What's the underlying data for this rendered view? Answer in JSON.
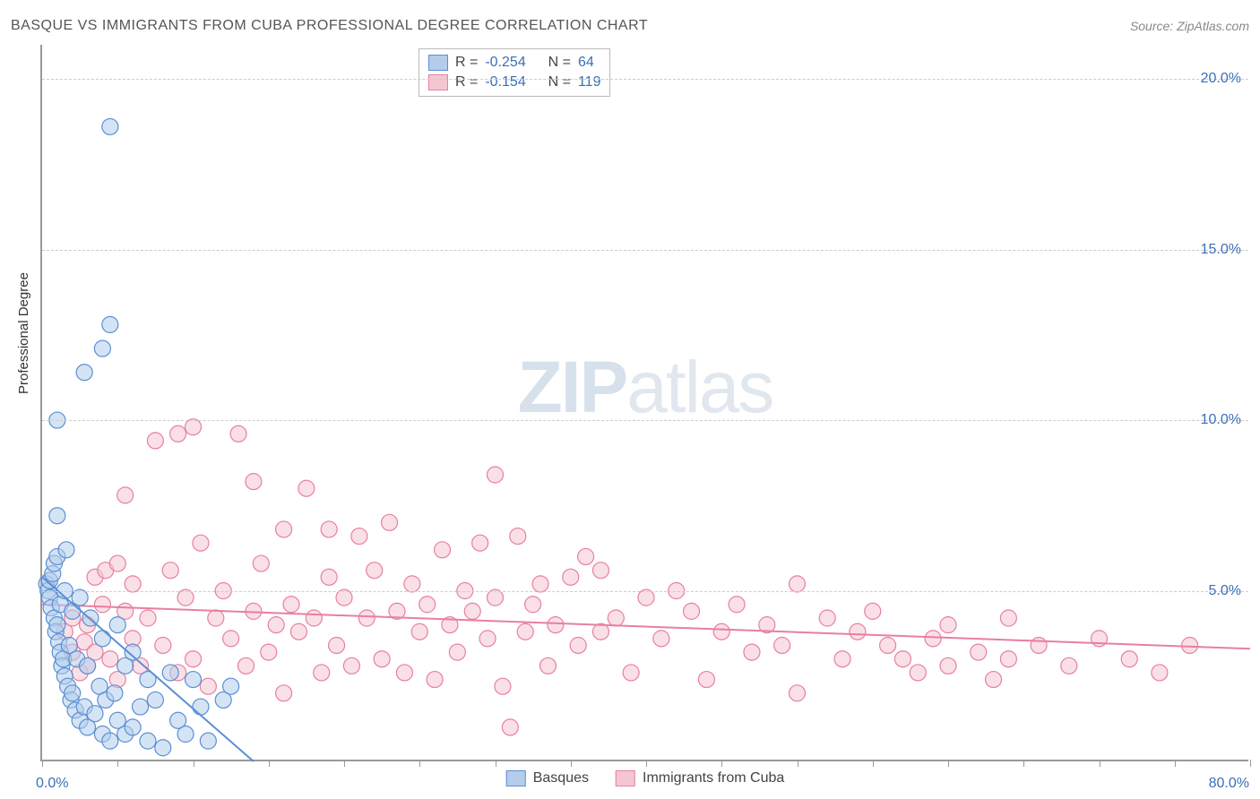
{
  "title": "BASQUE VS IMMIGRANTS FROM CUBA PROFESSIONAL DEGREE CORRELATION CHART",
  "source": "Source: ZipAtlas.com",
  "watermark": {
    "bold": "ZIP",
    "rest": "atlas"
  },
  "chart": {
    "type": "scatter",
    "background_color": "#ffffff",
    "grid_color": "#cccccc",
    "axis_color": "#999999",
    "yaxis_label": "Professional Degree",
    "ylim": [
      0,
      21
    ],
    "yticks": [
      5,
      10,
      15,
      20
    ],
    "ytick_labels": [
      "5.0%",
      "10.0%",
      "15.0%",
      "20.0%"
    ],
    "xlim": [
      0,
      80
    ],
    "xticks": [
      0,
      5,
      10,
      15,
      20,
      25,
      30,
      35,
      40,
      45,
      50,
      55,
      60,
      65,
      70,
      75,
      80
    ],
    "xaxis_min_label": "0.0%",
    "xaxis_max_label": "80.0%",
    "label_fontsize": 15,
    "tick_fontsize": 16,
    "tick_color": "#3b6fb6",
    "marker_radius": 9,
    "marker_opacity": 0.55,
    "line_width": 2
  },
  "series": {
    "basques": {
      "label": "Basques",
      "color_fill": "#b3cdeb",
      "color_stroke": "#5a8fd4",
      "R": "-0.254",
      "N": "64",
      "regression": {
        "x1": 0,
        "y1": 5.4,
        "x2": 14,
        "y2": 0
      },
      "points": [
        [
          0.3,
          5.2
        ],
        [
          0.4,
          5.0
        ],
        [
          0.5,
          4.8
        ],
        [
          0.5,
          5.3
        ],
        [
          0.6,
          4.5
        ],
        [
          0.7,
          5.5
        ],
        [
          0.8,
          4.2
        ],
        [
          0.8,
          5.8
        ],
        [
          0.9,
          3.8
        ],
        [
          1.0,
          4.0
        ],
        [
          1.0,
          6.0
        ],
        [
          1.1,
          3.5
        ],
        [
          1.2,
          3.2
        ],
        [
          1.2,
          4.6
        ],
        [
          1.3,
          2.8
        ],
        [
          1.4,
          3.0
        ],
        [
          1.5,
          2.5
        ],
        [
          1.5,
          5.0
        ],
        [
          1.6,
          6.2
        ],
        [
          1.7,
          2.2
        ],
        [
          1.8,
          3.4
        ],
        [
          1.9,
          1.8
        ],
        [
          2.0,
          2.0
        ],
        [
          2.0,
          4.4
        ],
        [
          2.2,
          1.5
        ],
        [
          2.3,
          3.0
        ],
        [
          2.5,
          1.2
        ],
        [
          2.5,
          4.8
        ],
        [
          2.8,
          1.6
        ],
        [
          3.0,
          2.8
        ],
        [
          3.0,
          1.0
        ],
        [
          3.2,
          4.2
        ],
        [
          3.5,
          1.4
        ],
        [
          3.8,
          2.2
        ],
        [
          4.0,
          3.6
        ],
        [
          4.0,
          0.8
        ],
        [
          4.2,
          1.8
        ],
        [
          4.5,
          0.6
        ],
        [
          4.8,
          2.0
        ],
        [
          5.0,
          1.2
        ],
        [
          5.0,
          4.0
        ],
        [
          5.5,
          0.8
        ],
        [
          5.5,
          2.8
        ],
        [
          6.0,
          1.0
        ],
        [
          6.0,
          3.2
        ],
        [
          6.5,
          1.6
        ],
        [
          7.0,
          0.6
        ],
        [
          7.0,
          2.4
        ],
        [
          7.5,
          1.8
        ],
        [
          8.0,
          0.4
        ],
        [
          8.5,
          2.6
        ],
        [
          9.0,
          1.2
        ],
        [
          9.5,
          0.8
        ],
        [
          10.0,
          2.4
        ],
        [
          10.5,
          1.6
        ],
        [
          11.0,
          0.6
        ],
        [
          12.0,
          1.8
        ],
        [
          12.5,
          2.2
        ],
        [
          1.0,
          7.2
        ],
        [
          1.0,
          10.0
        ],
        [
          2.8,
          11.4
        ],
        [
          4.0,
          12.1
        ],
        [
          4.5,
          12.8
        ],
        [
          4.5,
          18.6
        ]
      ]
    },
    "cuba": {
      "label": "Immigrants from Cuba",
      "color_fill": "#f4c6d2",
      "color_stroke": "#e87fa0",
      "R": "-0.154",
      "N": "119",
      "regression": {
        "x1": 0,
        "y1": 4.6,
        "x2": 80,
        "y2": 3.3
      },
      "points": [
        [
          1.5,
          3.8
        ],
        [
          2.0,
          4.2
        ],
        [
          2.0,
          3.2
        ],
        [
          2.5,
          2.6
        ],
        [
          2.8,
          3.5
        ],
        [
          3.0,
          4.0
        ],
        [
          3.0,
          2.8
        ],
        [
          3.5,
          5.4
        ],
        [
          3.5,
          3.2
        ],
        [
          4.0,
          4.6
        ],
        [
          4.2,
          5.6
        ],
        [
          4.5,
          3.0
        ],
        [
          5.0,
          2.4
        ],
        [
          5.0,
          5.8
        ],
        [
          5.5,
          7.8
        ],
        [
          5.5,
          4.4
        ],
        [
          6.0,
          3.6
        ],
        [
          6.0,
          5.2
        ],
        [
          6.5,
          2.8
        ],
        [
          7.0,
          4.2
        ],
        [
          7.5,
          9.4
        ],
        [
          8.0,
          3.4
        ],
        [
          8.5,
          5.6
        ],
        [
          9.0,
          2.6
        ],
        [
          9.0,
          9.6
        ],
        [
          9.5,
          4.8
        ],
        [
          10.0,
          3.0
        ],
        [
          10.0,
          9.8
        ],
        [
          10.5,
          6.4
        ],
        [
          11.0,
          2.2
        ],
        [
          11.5,
          4.2
        ],
        [
          12.0,
          5.0
        ],
        [
          12.5,
          3.6
        ],
        [
          13.0,
          9.6
        ],
        [
          13.5,
          2.8
        ],
        [
          14.0,
          4.4
        ],
        [
          14.0,
          8.2
        ],
        [
          14.5,
          5.8
        ],
        [
          15.0,
          3.2
        ],
        [
          15.5,
          4.0
        ],
        [
          16.0,
          6.8
        ],
        [
          16.0,
          2.0
        ],
        [
          16.5,
          4.6
        ],
        [
          17.0,
          3.8
        ],
        [
          17.5,
          8.0
        ],
        [
          18.0,
          4.2
        ],
        [
          18.5,
          2.6
        ],
        [
          19.0,
          5.4
        ],
        [
          19.0,
          6.8
        ],
        [
          19.5,
          3.4
        ],
        [
          20.0,
          4.8
        ],
        [
          20.5,
          2.8
        ],
        [
          21.0,
          6.6
        ],
        [
          21.5,
          4.2
        ],
        [
          22.0,
          5.6
        ],
        [
          22.5,
          3.0
        ],
        [
          23.0,
          7.0
        ],
        [
          23.5,
          4.4
        ],
        [
          24.0,
          2.6
        ],
        [
          24.5,
          5.2
        ],
        [
          25.0,
          3.8
        ],
        [
          25.5,
          4.6
        ],
        [
          26.0,
          2.4
        ],
        [
          26.5,
          6.2
        ],
        [
          27.0,
          4.0
        ],
        [
          27.5,
          3.2
        ],
        [
          28.0,
          5.0
        ],
        [
          28.5,
          4.4
        ],
        [
          29.0,
          6.4
        ],
        [
          29.5,
          3.6
        ],
        [
          30.0,
          4.8
        ],
        [
          30.0,
          8.4
        ],
        [
          30.5,
          2.2
        ],
        [
          31.0,
          1.0
        ],
        [
          31.5,
          6.6
        ],
        [
          32.0,
          3.8
        ],
        [
          32.5,
          4.6
        ],
        [
          33.0,
          5.2
        ],
        [
          33.5,
          2.8
        ],
        [
          34.0,
          4.0
        ],
        [
          35.0,
          5.4
        ],
        [
          35.5,
          3.4
        ],
        [
          36.0,
          6.0
        ],
        [
          37.0,
          3.8
        ],
        [
          37.0,
          5.6
        ],
        [
          38.0,
          4.2
        ],
        [
          39.0,
          2.6
        ],
        [
          40.0,
          4.8
        ],
        [
          41.0,
          3.6
        ],
        [
          42.0,
          5.0
        ],
        [
          43.0,
          4.4
        ],
        [
          44.0,
          2.4
        ],
        [
          45.0,
          3.8
        ],
        [
          46.0,
          4.6
        ],
        [
          47.0,
          3.2
        ],
        [
          48.0,
          4.0
        ],
        [
          49.0,
          3.4
        ],
        [
          50.0,
          5.2
        ],
        [
          50.0,
          2.0
        ],
        [
          52.0,
          4.2
        ],
        [
          53.0,
          3.0
        ],
        [
          54.0,
          3.8
        ],
        [
          55.0,
          4.4
        ],
        [
          56.0,
          3.4
        ],
        [
          57.0,
          3.0
        ],
        [
          58.0,
          2.6
        ],
        [
          59.0,
          3.6
        ],
        [
          60.0,
          4.0
        ],
        [
          60.0,
          2.8
        ],
        [
          62.0,
          3.2
        ],
        [
          63.0,
          2.4
        ],
        [
          64.0,
          3.0
        ],
        [
          64.0,
          4.2
        ],
        [
          66.0,
          3.4
        ],
        [
          68.0,
          2.8
        ],
        [
          70.0,
          3.6
        ],
        [
          72.0,
          3.0
        ],
        [
          74.0,
          2.6
        ],
        [
          76.0,
          3.4
        ]
      ]
    }
  },
  "stats_labels": {
    "R": "R  =",
    "N": "N  ="
  }
}
